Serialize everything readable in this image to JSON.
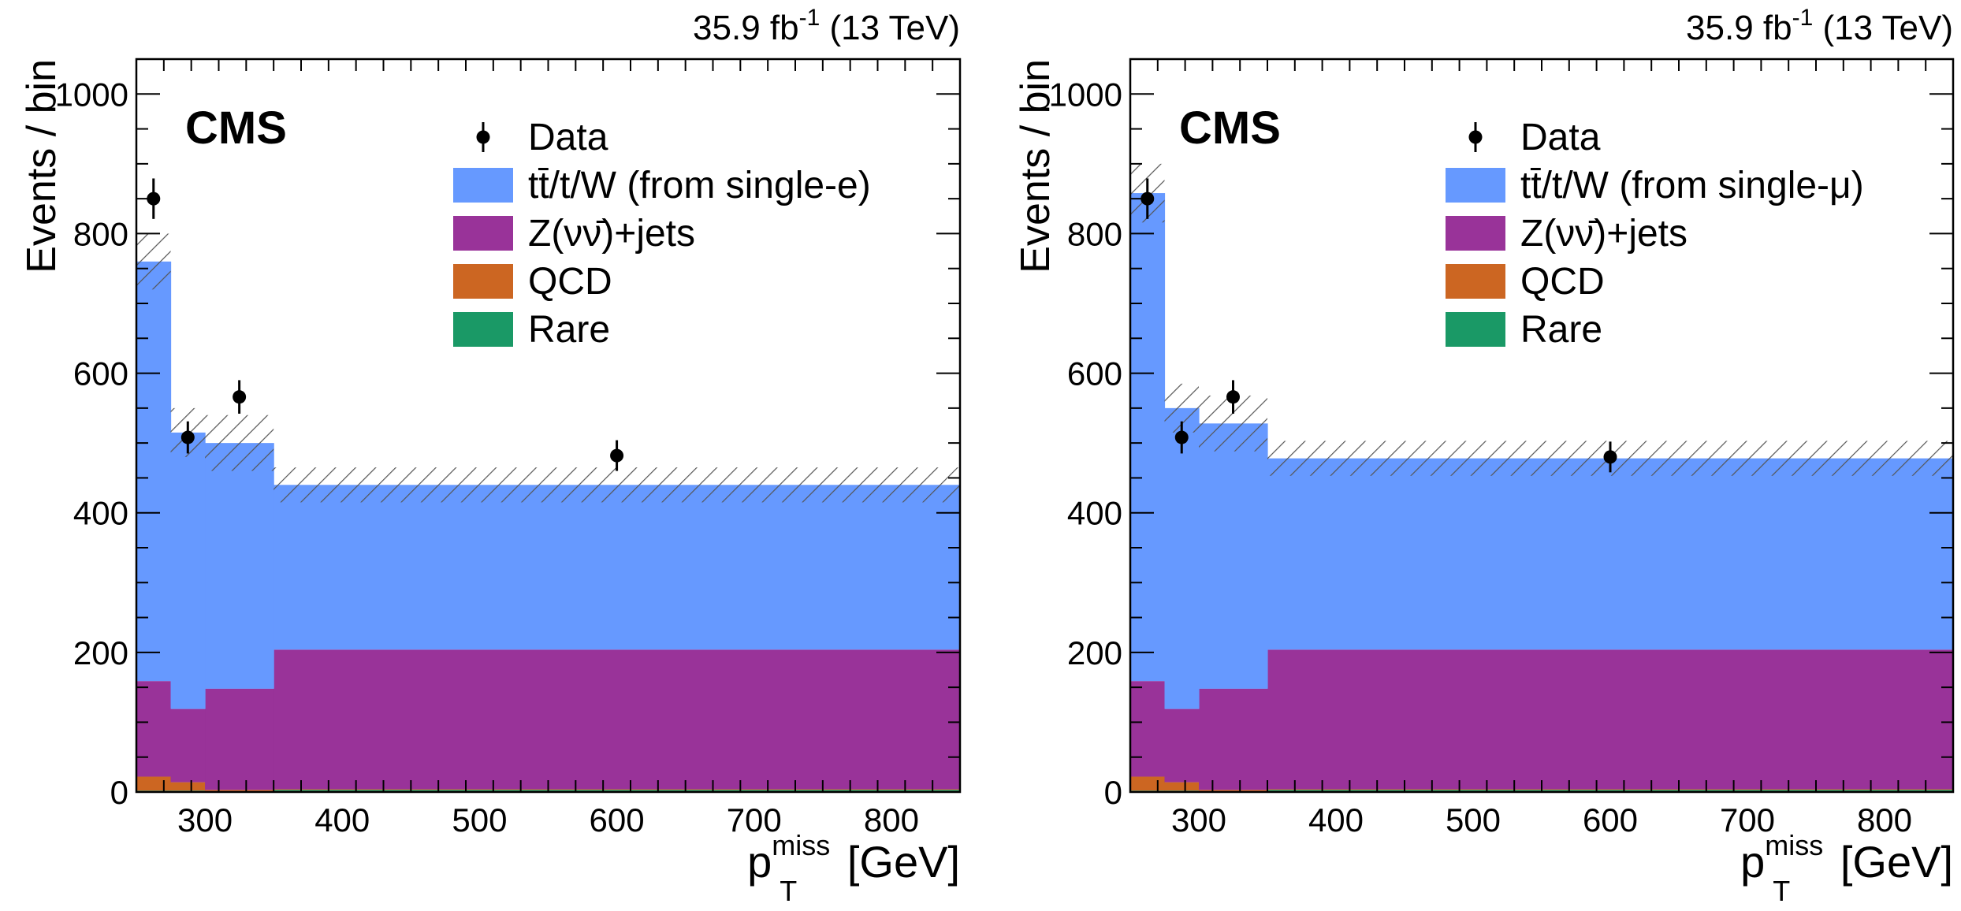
{
  "colors": {
    "ttw": "#6699ff",
    "znunu": "#993399",
    "qcd": "#cc6622",
    "rare": "#1a9966",
    "data": "#000000",
    "uncertainty_hatch": "#555555"
  },
  "chart_data": [
    {
      "type": "bar",
      "stacked": true,
      "lumi": "35.9 fb",
      "lumi_exp": "-1",
      "energy": "(13 TeV)",
      "experiment": "CMS",
      "ylabel": "Events / bin",
      "xlabel_base": "p",
      "xlabel_sup": "miss",
      "xlabel_sub": "T",
      "xlabel_unit": "[GeV]",
      "xlim": [
        250,
        850
      ],
      "ylim": [
        0,
        1050
      ],
      "xticks": [
        300,
        400,
        500,
        600,
        700,
        800
      ],
      "yticks": [
        0,
        200,
        400,
        600,
        800,
        1000
      ],
      "bins": [
        [
          250,
          275
        ],
        [
          275,
          300
        ],
        [
          300,
          350
        ],
        [
          350,
          850
        ]
      ],
      "series": [
        {
          "name": "Rare",
          "key": "rare",
          "values": [
            2,
            2,
            1,
            3
          ]
        },
        {
          "name": "QCD",
          "key": "qcd",
          "values": [
            20,
            12,
            2,
            1
          ]
        },
        {
          "name": "Z(νν̄)+jets",
          "key": "znunu",
          "values": [
            137,
            105,
            145,
            200
          ]
        },
        {
          "name": "tt̄/t/W (from single-e)",
          "key": "ttw",
          "values": [
            601,
            396,
            352,
            236
          ]
        }
      ],
      "uncertainty": [
        40,
        35,
        40,
        25
      ],
      "data": [
        {
          "x": 262.5,
          "y": 850,
          "err": 29
        },
        {
          "x": 287.5,
          "y": 508,
          "err": 23
        },
        {
          "x": 325,
          "y": 566,
          "err": 24
        },
        {
          "x": 600,
          "y": 482,
          "err": 22
        }
      ],
      "legend": [
        {
          "label": "Data",
          "key": "data",
          "marker": "point"
        },
        {
          "label": "tt̄/t/W (from single-e)",
          "key": "ttw",
          "marker": "box"
        },
        {
          "label": "Z(νν̄)+jets",
          "key": "znunu",
          "marker": "box"
        },
        {
          "label": "QCD",
          "key": "qcd",
          "marker": "box"
        },
        {
          "label": "Rare",
          "key": "rare",
          "marker": "box"
        }
      ]
    },
    {
      "type": "bar",
      "stacked": true,
      "lumi": "35.9 fb",
      "lumi_exp": "-1",
      "energy": "(13 TeV)",
      "experiment": "CMS",
      "ylabel": "Events / bin",
      "xlabel_base": "p",
      "xlabel_sup": "miss",
      "xlabel_sub": "T",
      "xlabel_unit": "[GeV]",
      "xlim": [
        250,
        850
      ],
      "ylim": [
        0,
        1050
      ],
      "xticks": [
        300,
        400,
        500,
        600,
        700,
        800
      ],
      "yticks": [
        0,
        200,
        400,
        600,
        800,
        1000
      ],
      "bins": [
        [
          250,
          275
        ],
        [
          275,
          300
        ],
        [
          300,
          350
        ],
        [
          350,
          850
        ]
      ],
      "series": [
        {
          "name": "Rare",
          "key": "rare",
          "values": [
            2,
            2,
            1,
            3
          ]
        },
        {
          "name": "QCD",
          "key": "qcd",
          "values": [
            20,
            12,
            2,
            1
          ]
        },
        {
          "name": "Z(νν̄)+jets",
          "key": "znunu",
          "values": [
            137,
            105,
            145,
            200
          ]
        },
        {
          "name": "tt̄/t/W (from single-μ)",
          "key": "ttw",
          "values": [
            699,
            431,
            380,
            274
          ]
        }
      ],
      "uncertainty": [
        42,
        35,
        40,
        25
      ],
      "data": [
        {
          "x": 262.5,
          "y": 850,
          "err": 29
        },
        {
          "x": 287.5,
          "y": 508,
          "err": 23
        },
        {
          "x": 325,
          "y": 566,
          "err": 24
        },
        {
          "x": 600,
          "y": 480,
          "err": 22
        }
      ],
      "legend": [
        {
          "label": "Data",
          "key": "data",
          "marker": "point"
        },
        {
          "label": "tt̄/t/W (from single-μ)",
          "key": "ttw",
          "marker": "box"
        },
        {
          "label": "Z(νν̄)+jets",
          "key": "znunu",
          "marker": "box"
        },
        {
          "label": "QCD",
          "key": "qcd",
          "marker": "box"
        },
        {
          "label": "Rare",
          "key": "rare",
          "marker": "box"
        }
      ]
    }
  ]
}
